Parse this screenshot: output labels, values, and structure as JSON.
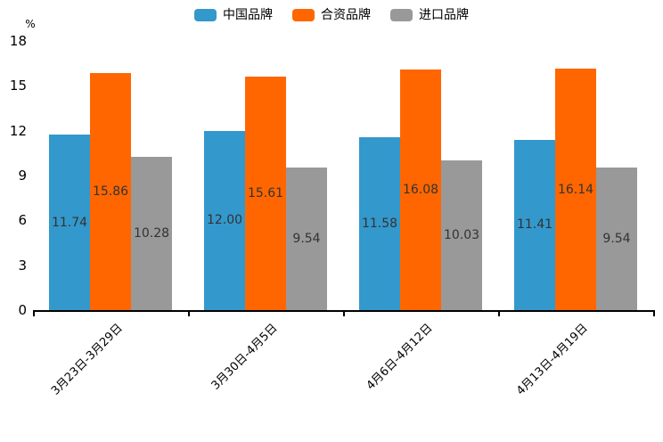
{
  "chart_data": {
    "type": "bar",
    "title": "",
    "unit_label": "%",
    "categories": [
      "3月23日-3月29日",
      "3月30日-4月5日",
      "4月6日-4月12日",
      "4月13日-4月19日"
    ],
    "series": [
      {
        "name": "中国品牌",
        "color": "#3398CC",
        "values": [
          11.74,
          12.0,
          11.58,
          11.41
        ]
      },
      {
        "name": "合资品牌",
        "color": "#FF6600",
        "values": [
          15.86,
          15.61,
          16.08,
          16.14
        ]
      },
      {
        "name": "进口品牌",
        "color": "#999999",
        "values": [
          10.28,
          9.54,
          10.03,
          9.54
        ]
      }
    ],
    "ylim": [
      0,
      18
    ],
    "yticks": [
      0,
      3,
      6,
      9,
      12,
      15,
      18
    ],
    "legend_position": "top-center",
    "grid": false,
    "value_labels": true,
    "value_label_decimals": 2,
    "value_label_color": "#333333",
    "axis_color": "#000000"
  }
}
